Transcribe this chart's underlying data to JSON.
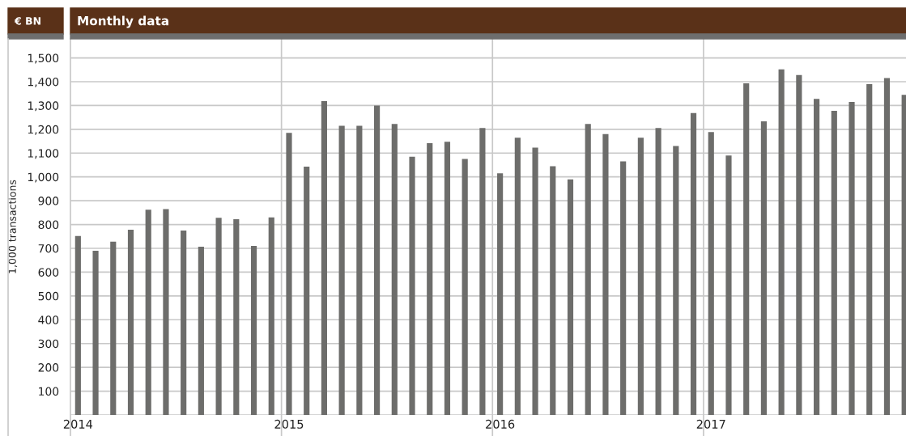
{
  "chart_data": {
    "type": "bar",
    "title": "Monthly data",
    "ylabel": "1,000 transactions",
    "annotations": [
      "€ BN"
    ],
    "categories": [
      "2014",
      null,
      null,
      null,
      null,
      null,
      null,
      null,
      null,
      null,
      null,
      null,
      "2015",
      null,
      null,
      null,
      null,
      null,
      null,
      null,
      null,
      null,
      null,
      null,
      "2016",
      null,
      null,
      null,
      null,
      null,
      null,
      null,
      null,
      null,
      null,
      null,
      "2017",
      null,
      null,
      null,
      null,
      null,
      null,
      null,
      null,
      null,
      null,
      null
    ],
    "series": [
      {
        "color": "#6d6d6b",
        "values": [
          752,
          690,
          728,
          778,
          862,
          865,
          775,
          707,
          828,
          822,
          710,
          830,
          1185,
          1043,
          1318,
          1215,
          1215,
          1300,
          1222,
          1085,
          1142,
          1148,
          1075,
          1205,
          1015,
          1165,
          1123,
          1045,
          990,
          1222,
          1180,
          1065,
          1165,
          1205,
          1130,
          1268,
          1188,
          1090,
          1393,
          1233,
          1452,
          1428,
          1328,
          1278,
          1315,
          1390,
          1415,
          1345
        ]
      }
    ],
    "ylim": [
      0,
      1580
    ],
    "yticks": [
      100,
      200,
      300,
      400,
      500,
      600,
      700,
      800,
      900,
      {
        "value": 1000,
        "label": "1,000"
      },
      {
        "value": 1100,
        "label": "1,100"
      },
      {
        "value": 1200,
        "label": "1,200"
      },
      {
        "value": 1300,
        "label": "1,300"
      },
      {
        "value": 1400,
        "label": "1,400"
      },
      {
        "value": 1500,
        "label": "1,500"
      }
    ],
    "grid": true,
    "legend": false
  }
}
